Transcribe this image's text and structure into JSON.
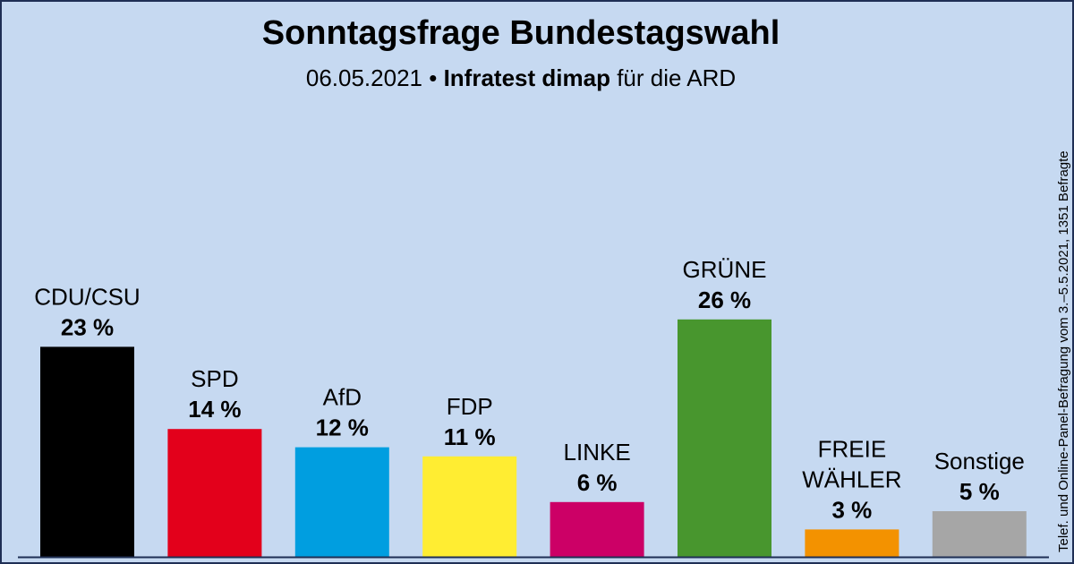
{
  "header": {
    "title": "Sonntagsfrage Bundestagswahl",
    "subtitle_date": "06.05.2021",
    "subtitle_bullet": "•",
    "subtitle_institute": "Infratest dimap",
    "subtitle_client": "für die ARD"
  },
  "side_note": "Telef. und Online-Panel-Befragung vom 3.–5.5.2021, 1351 Befragte",
  "chart_data": {
    "type": "bar",
    "categories": [
      "CDU/CSU",
      "SPD",
      "AfD",
      "FDP",
      "LINKE",
      "GRÜNE",
      "FREIE WÄHLER",
      "Sonstige"
    ],
    "values": [
      23,
      14,
      12,
      11,
      6,
      26,
      3,
      5
    ],
    "value_labels": [
      "23 %",
      "14 %",
      "12 %",
      "11 %",
      "6 %",
      "26 %",
      "3 %",
      "5 %"
    ],
    "colors": [
      "#000000",
      "#e3001b",
      "#009ee0",
      "#ffed32",
      "#cc0066",
      "#48962e",
      "#f39200",
      "#a6a6a6"
    ],
    "title": "Sonntagsfrage Bundestagswahl",
    "xlabel": "",
    "ylabel": "",
    "grid": false,
    "legend": "none"
  }
}
